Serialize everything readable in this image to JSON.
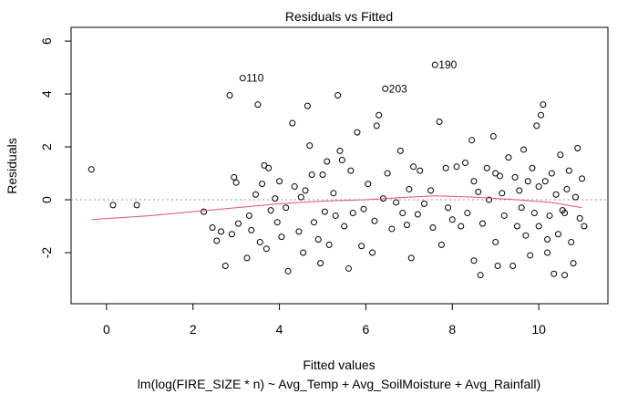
{
  "chart_data": {
    "type": "scatter",
    "title": "Residuals vs Fitted",
    "xlabel": "Fitted values",
    "ylabel": "Residuals",
    "subtitle": "lm(log(FIRE_SIZE * n) ~ Avg_Temp + Avg_SoilMoisture + Avg_Rainfall)",
    "x": [
      -0.35,
      0.15,
      0.7,
      2.25,
      2.45,
      2.55,
      2.65,
      2.75,
      2.85,
      2.9,
      2.95,
      3.0,
      3.05,
      3.15,
      3.25,
      3.35,
      3.45,
      3.5,
      3.55,
      3.6,
      3.65,
      3.7,
      3.75,
      3.8,
      3.9,
      3.95,
      4.0,
      4.05,
      4.15,
      4.2,
      4.3,
      4.35,
      4.45,
      4.55,
      4.6,
      4.65,
      4.7,
      4.75,
      4.8,
      4.9,
      4.95,
      5.0,
      5.05,
      5.1,
      5.15,
      5.25,
      5.35,
      5.4,
      5.45,
      5.5,
      5.6,
      5.65,
      5.7,
      5.8,
      5.9,
      5.95,
      6.05,
      6.15,
      6.25,
      6.3,
      6.4,
      6.45,
      6.5,
      6.6,
      6.7,
      6.8,
      6.85,
      6.95,
      7.0,
      7.05,
      7.1,
      7.2,
      7.25,
      7.35,
      7.5,
      7.55,
      7.6,
      7.7,
      7.75,
      7.85,
      8.0,
      8.1,
      8.2,
      8.3,
      8.35,
      8.45,
      8.5,
      8.6,
      8.65,
      8.7,
      8.8,
      8.85,
      8.95,
      9.0,
      9.05,
      9.1,
      9.15,
      9.2,
      9.3,
      9.4,
      9.45,
      9.55,
      9.6,
      9.65,
      9.7,
      9.75,
      9.8,
      9.85,
      9.9,
      9.95,
      10.0,
      10.05,
      10.1,
      10.15,
      10.2,
      10.25,
      10.3,
      10.35,
      10.4,
      10.45,
      10.5,
      10.55,
      10.6,
      10.65,
      10.7,
      10.75,
      10.8,
      10.85,
      10.9,
      10.95,
      11.0,
      11.05,
      10.0,
      9.5,
      9.0,
      8.5,
      7.9,
      6.2,
      5.3,
      4.5,
      3.3,
      10.6,
      10.2
    ],
    "y": [
      1.15,
      -0.2,
      -0.2,
      -0.45,
      -1.05,
      -1.55,
      -1.2,
      -2.5,
      3.95,
      -1.3,
      0.85,
      0.65,
      -0.9,
      4.6,
      -2.2,
      -1.15,
      0.2,
      3.6,
      -1.6,
      0.6,
      1.3,
      -1.85,
      1.2,
      -0.4,
      0.05,
      -0.85,
      0.7,
      -1.4,
      -0.3,
      -2.7,
      2.9,
      0.5,
      -1.2,
      -2.0,
      0.35,
      3.55,
      2.05,
      0.95,
      -0.85,
      -1.5,
      -2.4,
      0.95,
      -0.45,
      1.45,
      -1.7,
      0.25,
      3.95,
      1.85,
      1.5,
      -1.0,
      -2.6,
      1.1,
      -0.5,
      2.55,
      -1.75,
      -0.35,
      0.6,
      -2.0,
      2.8,
      3.2,
      0.05,
      4.2,
      1.0,
      -1.1,
      -0.1,
      1.85,
      -0.5,
      -0.95,
      0.4,
      -2.2,
      1.25,
      -0.55,
      1.1,
      -0.15,
      0.35,
      -1.05,
      5.1,
      2.95,
      -1.7,
      1.2,
      -0.75,
      1.25,
      -1.0,
      1.4,
      -0.5,
      2.25,
      -2.3,
      0.3,
      -2.85,
      -0.9,
      1.2,
      0.0,
      2.4,
      -1.6,
      -2.5,
      0.9,
      0.25,
      -0.6,
      1.6,
      -2.5,
      0.85,
      0.35,
      -0.3,
      1.9,
      -1.35,
      0.7,
      -2.1,
      1.2,
      -0.5,
      2.8,
      -1.0,
      3.2,
      3.6,
      0.7,
      -2.0,
      -0.6,
      1.0,
      -2.8,
      0.2,
      -1.3,
      1.7,
      -0.4,
      -2.85,
      0.4,
      1.1,
      -1.6,
      -2.4,
      0.1,
      1.95,
      -0.7,
      0.8,
      -1.0,
      0.5,
      -1.0,
      1.0,
      0.7,
      -0.3,
      -0.8,
      -0.6,
      0.1,
      -0.6,
      -0.5,
      -1.5
    ],
    "point_color": "#000000",
    "xlim": [
      -0.82,
      11.6
    ],
    "ylim": [
      -3.93,
      6.52
    ],
    "xticks": [
      0,
      2,
      4,
      6,
      8,
      10
    ],
    "yticks": [
      -2,
      0,
      2,
      4,
      6
    ],
    "hline": 0,
    "smooth": {
      "x": [
        -0.35,
        1,
        2,
        3,
        4,
        5,
        6,
        7,
        7.6,
        8.5,
        9.5,
        10.3,
        11.0
      ],
      "y": [
        -0.75,
        -0.6,
        -0.45,
        -0.3,
        -0.15,
        -0.05,
        0.0,
        0.1,
        0.15,
        0.1,
        0.0,
        -0.1,
        -0.3
      ],
      "color": "#DF536B"
    },
    "annotations": [
      {
        "text": "110",
        "x": 3.15,
        "y": 4.6
      },
      {
        "text": "203",
        "x": 6.45,
        "y": 4.2
      },
      {
        "text": "190",
        "x": 7.6,
        "y": 5.1
      }
    ]
  }
}
